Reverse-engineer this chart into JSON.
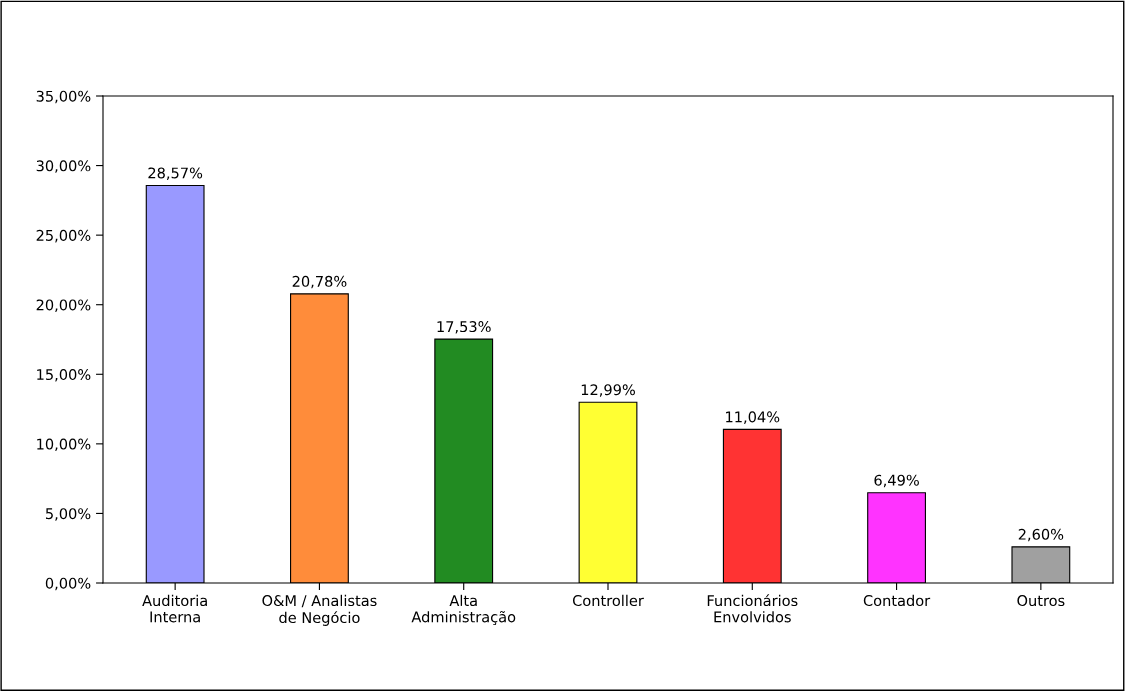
{
  "chart_data": {
    "type": "bar",
    "categories": [
      "Auditoria\nInterna",
      "O&M / Analistas\nde Negócio",
      "Alta\nAdministração",
      "Controller",
      "Funcionários\nEnvolvidos",
      "Contador",
      "Outros"
    ],
    "values": [
      28.57,
      20.78,
      17.53,
      12.99,
      11.04,
      6.49,
      2.6
    ],
    "colors": [
      "#9999ff",
      "#ff8c3a",
      "#228b22",
      "#ffff33",
      "#ff3333",
      "#ff33ff",
      "#a0a0a0"
    ],
    "value_labels": [
      "28,57%",
      "20,78%",
      "17,53%",
      "12,99%",
      "11,04%",
      "6,49%",
      "2,60%"
    ],
    "ylim": [
      0,
      35
    ],
    "yticks": [
      {
        "value": 0,
        "label": "0,00%"
      },
      {
        "value": 5,
        "label": "5,00%"
      },
      {
        "value": 10,
        "label": "10,00%"
      },
      {
        "value": 15,
        "label": "15,00%"
      },
      {
        "value": 20,
        "label": "20,00%"
      },
      {
        "value": 25,
        "label": "25,00%"
      },
      {
        "value": 30,
        "label": "30,00%"
      },
      {
        "value": 35,
        "label": "35,00%"
      }
    ],
    "grid": false,
    "legend": false
  }
}
